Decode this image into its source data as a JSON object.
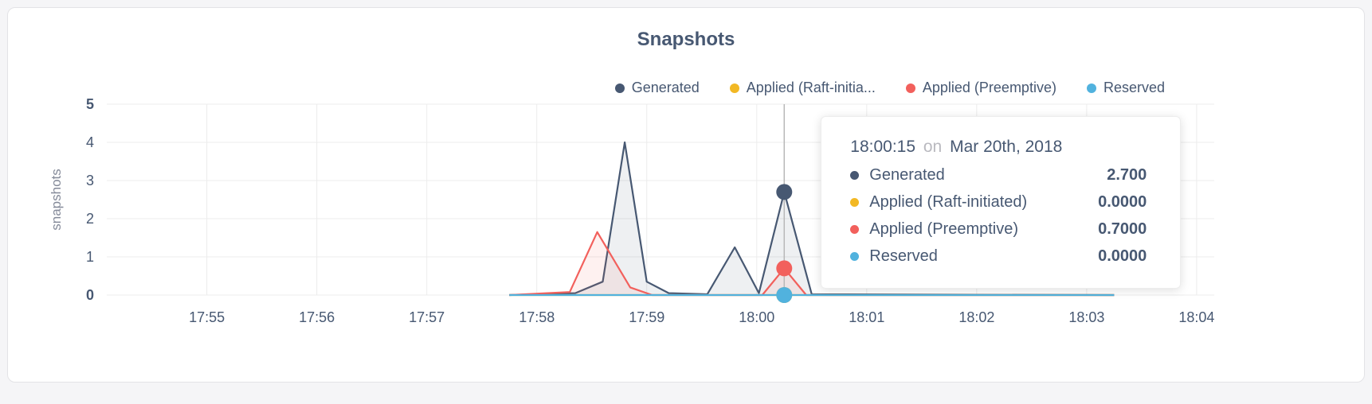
{
  "colors": {
    "accent_slate": "#475872",
    "grid": "#ececec",
    "crosshair": "#b8b8b8",
    "axis_label_gray": "#848a99",
    "tooltip_muted": "#b9b9bf",
    "page_background": "#f5f5f7",
    "card_background": "#ffffff"
  },
  "chart_data": {
    "type": "line",
    "title": "Snapshots",
    "ylabel": "snapshots",
    "legend_position": "top-right",
    "grid": true,
    "x_axis": {
      "tick_labels": [
        "17:55",
        "17:56",
        "17:57",
        "17:58",
        "17:59",
        "18:00",
        "18:01",
        "18:02",
        "18:03",
        "18:04"
      ],
      "tick_values": [
        0,
        1,
        2,
        3,
        4,
        5,
        6,
        7,
        8,
        9
      ],
      "unit": "minutes after 17:55 on Mar 20th, 2018",
      "xlim": [
        -0.91,
        9.16
      ]
    },
    "y_axis": {
      "tick_values": [
        0,
        1,
        2,
        3,
        4,
        5
      ],
      "ylim": [
        0,
        5
      ]
    },
    "series": [
      {
        "name": "Generated",
        "legend_label": "Generated",
        "color": "#475872",
        "points": [
          [
            2.75,
            0
          ],
          [
            3.35,
            0.05
          ],
          [
            3.6,
            0.35
          ],
          [
            3.8,
            4.0
          ],
          [
            4.0,
            0.35
          ],
          [
            4.2,
            0.05
          ],
          [
            4.55,
            0.02
          ],
          [
            4.8,
            1.25
          ],
          [
            5.02,
            0.05
          ],
          [
            5.25,
            2.7
          ],
          [
            5.5,
            0.02
          ],
          [
            8.25,
            0
          ]
        ]
      },
      {
        "name": "Applied (Raft-initiated)",
        "legend_label": "Applied (Raft-initia...",
        "color": "#f2b824",
        "points": [
          [
            2.75,
            0
          ],
          [
            8.25,
            0
          ]
        ]
      },
      {
        "name": "Applied (Preemptive)",
        "legend_label": "Applied (Preemptive)",
        "color": "#f2605c",
        "points": [
          [
            2.75,
            0
          ],
          [
            3.3,
            0.08
          ],
          [
            3.55,
            1.65
          ],
          [
            3.85,
            0.2
          ],
          [
            4.05,
            0
          ],
          [
            5.05,
            0
          ],
          [
            5.25,
            0.7
          ],
          [
            5.45,
            0
          ],
          [
            8.25,
            0
          ]
        ]
      },
      {
        "name": "Reserved",
        "legend_label": "Reserved",
        "color": "#51b2de",
        "points": [
          [
            2.75,
            0
          ],
          [
            8.25,
            0
          ]
        ]
      }
    ]
  },
  "tooltip": {
    "time": "18:00:15",
    "connector": "on",
    "date": "Mar 20th, 2018",
    "hover_x": 5.25,
    "rows": [
      {
        "name": "Generated",
        "value": "2.700",
        "y": 2.7
      },
      {
        "name": "Applied (Raft-initiated)",
        "value": "0.0000",
        "y": 0
      },
      {
        "name": "Applied (Preemptive)",
        "value": "0.7000",
        "y": 0.7
      },
      {
        "name": "Reserved",
        "value": "0.0000",
        "y": 0
      }
    ]
  }
}
